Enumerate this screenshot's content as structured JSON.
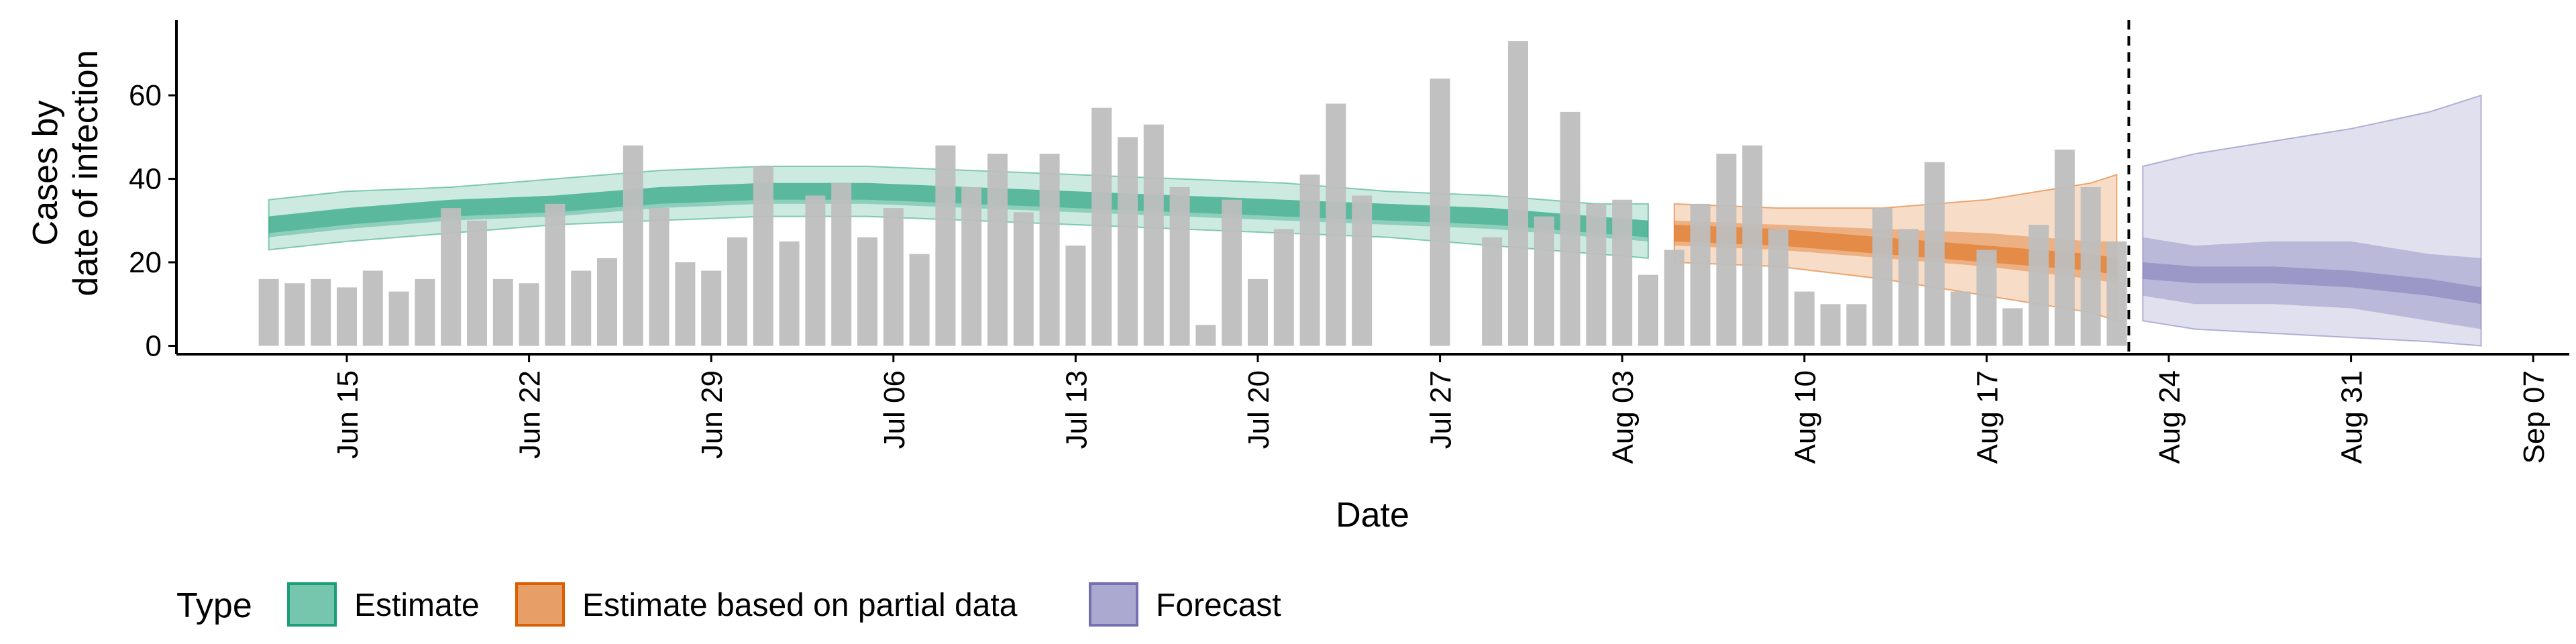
{
  "chart_data": {
    "type": "bar",
    "xlabel": "Date",
    "ylabel_lines": [
      "Cases by",
      "date of infection"
    ],
    "y_ticks": [
      0,
      20,
      40,
      60
    ],
    "ylim": [
      -2,
      78
    ],
    "x_tick_labels": [
      "Jun 15",
      "Jun 22",
      "Jun 29",
      "Jul 06",
      "Jul 13",
      "Jul 20",
      "Jul 27",
      "Aug 03",
      "Aug 10",
      "Aug 17",
      "Aug 24",
      "Aug 31",
      "Sep 07"
    ],
    "dates": [
      "2020-06-12",
      "2020-06-13",
      "2020-06-14",
      "2020-06-15",
      "2020-06-16",
      "2020-06-17",
      "2020-06-18",
      "2020-06-19",
      "2020-06-20",
      "2020-06-21",
      "2020-06-22",
      "2020-06-23",
      "2020-06-24",
      "2020-06-25",
      "2020-06-26",
      "2020-06-27",
      "2020-06-28",
      "2020-06-29",
      "2020-06-30",
      "2020-07-01",
      "2020-07-02",
      "2020-07-03",
      "2020-07-04",
      "2020-07-05",
      "2020-07-06",
      "2020-07-07",
      "2020-07-08",
      "2020-07-09",
      "2020-07-10",
      "2020-07-11",
      "2020-07-12",
      "2020-07-13",
      "2020-07-14",
      "2020-07-15",
      "2020-07-16",
      "2020-07-17",
      "2020-07-18",
      "2020-07-19",
      "2020-07-20",
      "2020-07-21",
      "2020-07-22",
      "2020-07-23",
      "2020-07-24",
      "2020-07-25",
      "2020-07-26",
      "2020-07-27",
      "2020-07-28",
      "2020-07-29",
      "2020-07-30",
      "2020-07-31",
      "2020-08-01",
      "2020-08-02",
      "2020-08-03",
      "2020-08-04",
      "2020-08-05",
      "2020-08-06",
      "2020-08-07",
      "2020-08-08",
      "2020-08-09",
      "2020-08-10",
      "2020-08-11",
      "2020-08-12",
      "2020-08-13",
      "2020-08-14",
      "2020-08-15",
      "2020-08-16",
      "2020-08-17",
      "2020-08-18",
      "2020-08-19",
      "2020-08-20",
      "2020-08-21",
      "2020-08-22"
    ],
    "reported_cases": [
      16,
      15,
      16,
      14,
      18,
      13,
      16,
      33,
      30,
      16,
      15,
      34,
      18,
      21,
      48,
      33,
      20,
      18,
      26,
      43,
      25,
      36,
      39,
      26,
      33,
      22,
      48,
      38,
      46,
      32,
      46,
      24,
      57,
      50,
      53,
      38,
      5,
      35,
      16,
      28,
      41,
      58,
      36,
      null,
      null,
      64,
      null,
      26,
      73,
      31,
      56,
      34,
      35,
      17,
      23,
      34,
      46,
      48,
      28,
      13,
      10,
      10,
      33,
      28,
      44,
      13,
      23,
      9,
      29,
      47,
      38,
      25
    ],
    "forecast_horizon_date": "2020-08-22",
    "series": [
      {
        "name": "Estimate",
        "color": "#1b9e77",
        "dates": [
          "2020-06-12",
          "2020-06-15",
          "2020-06-19",
          "2020-06-23",
          "2020-06-27",
          "2020-07-01",
          "2020-07-05",
          "2020-07-09",
          "2020-07-13",
          "2020-07-17",
          "2020-07-21",
          "2020-07-25",
          "2020-07-29",
          "2020-08-02",
          "2020-08-04"
        ],
        "median": [
          29,
          31,
          33,
          34,
          36,
          37,
          37,
          36,
          35,
          34,
          33,
          32,
          31,
          29,
          28
        ],
        "inner_lower": [
          26,
          28,
          30,
          31,
          33,
          34,
          34,
          33,
          32,
          31,
          30,
          29,
          28,
          26,
          25
        ],
        "inner_upper": [
          31,
          33,
          35,
          36,
          38,
          39,
          39,
          38,
          37,
          36,
          35,
          34,
          33,
          31,
          30
        ],
        "outer_lower": [
          23,
          25,
          27,
          29,
          30,
          31,
          31,
          30,
          29,
          28,
          27,
          26,
          24,
          22,
          21
        ],
        "outer_upper": [
          35,
          37,
          38,
          40,
          42,
          43,
          43,
          42,
          41,
          40,
          39,
          37,
          36,
          34,
          34
        ]
      },
      {
        "name": "Estimate based on partial data",
        "color": "#d95f02",
        "dates": [
          "2020-08-05",
          "2020-08-09",
          "2020-08-13",
          "2020-08-17",
          "2020-08-21",
          "2020-08-22"
        ],
        "median": [
          27,
          26,
          24,
          22,
          20,
          19
        ],
        "inner_lower": [
          24,
          23,
          21,
          19,
          16,
          15
        ],
        "inner_upper": [
          30,
          29,
          28,
          27,
          25,
          25
        ],
        "outer_lower": [
          20,
          19,
          16,
          12,
          8,
          6
        ],
        "outer_upper": [
          34,
          33,
          33,
          35,
          39,
          41
        ]
      },
      {
        "name": "Forecast",
        "color": "#7570b3",
        "dates": [
          "2020-08-23",
          "2020-08-25",
          "2020-08-28",
          "2020-08-31",
          "2020-09-03",
          "2020-09-05"
        ],
        "median": [
          18,
          17,
          17,
          16,
          14,
          12
        ],
        "inner_lower": [
          12,
          10,
          10,
          9,
          6,
          4
        ],
        "inner_upper": [
          26,
          24,
          25,
          25,
          22,
          21
        ],
        "outer_lower": [
          6,
          4,
          3,
          2,
          1,
          0
        ],
        "outer_upper": [
          43,
          46,
          49,
          52,
          56,
          60
        ]
      }
    ],
    "legend": {
      "title": "Type",
      "position": "bottom",
      "items": [
        "Estimate",
        "Estimate based on partial data",
        "Forecast"
      ]
    }
  },
  "colors": {
    "bar": "#bebebe",
    "axis": "#000000"
  }
}
